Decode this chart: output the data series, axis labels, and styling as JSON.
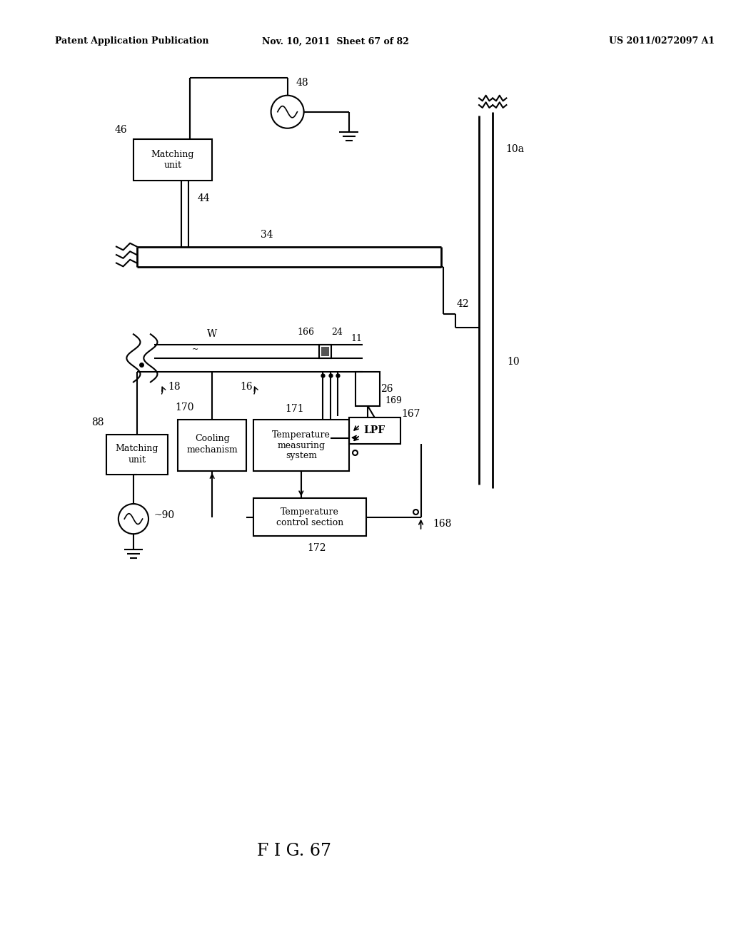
{
  "title_left": "Patent Application Publication",
  "title_mid": "Nov. 10, 2011  Sheet 67 of 82",
  "title_right": "US 2011/0272097 A1",
  "fig_label": "F I G. 67",
  "bg_color": "#ffffff",
  "line_color": "#000000",
  "text_color": "#000000"
}
